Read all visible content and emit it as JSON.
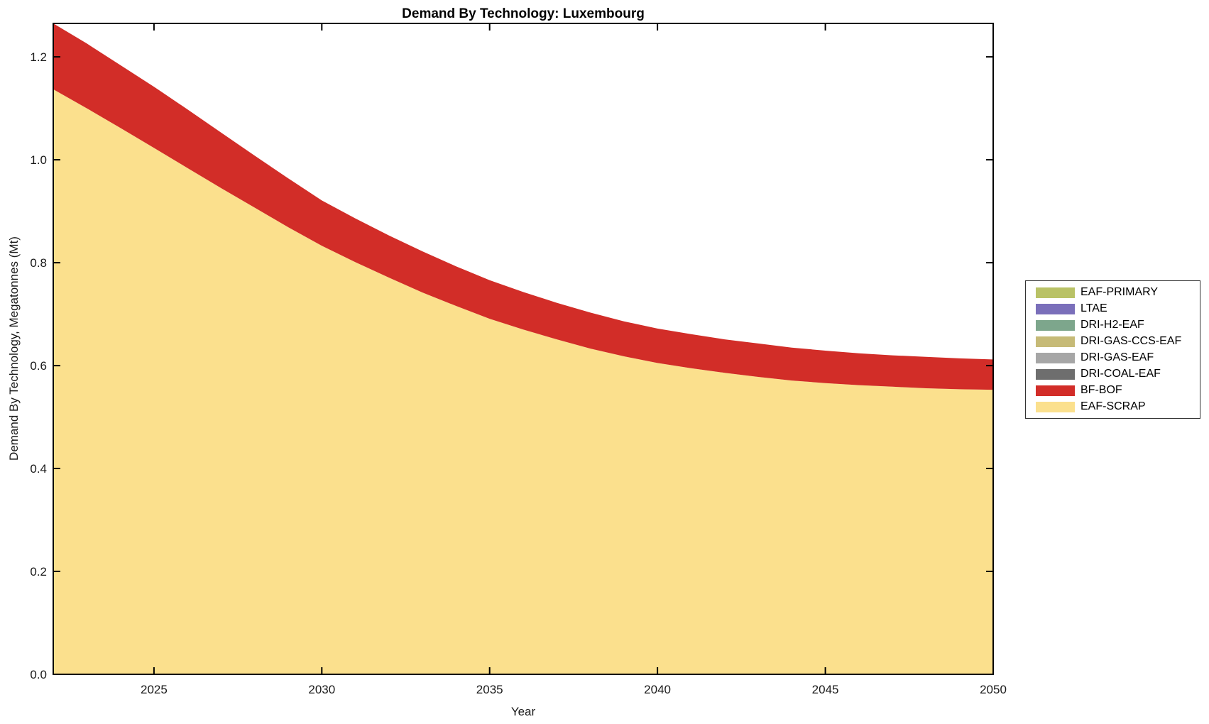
{
  "title": "Demand By Technology: Luxembourg",
  "axes": {
    "x": {
      "label": "Year",
      "tick_labels": [
        "2025",
        "2030",
        "2035",
        "2040",
        "2045",
        "2050"
      ]
    },
    "y": {
      "label": "Demand By Technology, Megatonnes (Mt)",
      "tick_labels": [
        "0.0",
        "0.2",
        "0.4",
        "0.6",
        "0.8",
        "1.0",
        "1.2"
      ]
    }
  },
  "legend": {
    "items": [
      {
        "label": "EAF-PRIMARY",
        "color": "#b9c266"
      },
      {
        "label": "LTAE",
        "color": "#7a6fba"
      },
      {
        "label": "DRI-H2-EAF",
        "color": "#7da68c"
      },
      {
        "label": "DRI-GAS-CCS-EAF",
        "color": "#c6ba77"
      },
      {
        "label": "DRI-GAS-EAF",
        "color": "#a6a6a6"
      },
      {
        "label": "DRI-COAL-EAF",
        "color": "#6e6e6e"
      },
      {
        "label": "BF-BOF",
        "color": "#d22d28"
      },
      {
        "label": "EAF-SCRAP",
        "color": "#fbe08d"
      }
    ]
  },
  "chart_data": {
    "type": "area",
    "stacked": true,
    "title": "Demand By Technology: Luxembourg",
    "xlabel": "Year",
    "ylabel": "Demand By Technology, Megatonnes (Mt)",
    "xlim": [
      2022,
      2050
    ],
    "ylim": [
      0,
      1.265
    ],
    "xticks": [
      2025,
      2030,
      2035,
      2040,
      2045,
      2050
    ],
    "yticks": [
      0.0,
      0.2,
      0.4,
      0.6,
      0.8,
      1.0,
      1.2
    ],
    "grid": false,
    "legend_position": "right-outside",
    "legend_order_top_to_bottom": [
      "EAF-PRIMARY",
      "LTAE",
      "DRI-H2-EAF",
      "DRI-GAS-CCS-EAF",
      "DRI-GAS-EAF",
      "DRI-COAL-EAF",
      "BF-BOF",
      "EAF-SCRAP"
    ],
    "x": [
      2022,
      2023,
      2024,
      2025,
      2026,
      2027,
      2028,
      2029,
      2030,
      2031,
      2032,
      2033,
      2034,
      2035,
      2036,
      2037,
      2038,
      2039,
      2040,
      2041,
      2042,
      2043,
      2044,
      2045,
      2046,
      2047,
      2048,
      2049,
      2050
    ],
    "series": [
      {
        "name": "EAF-SCRAP",
        "color": "#fbe08d",
        "values": [
          1.137,
          1.1,
          1.062,
          1.023,
          0.984,
          0.945,
          0.907,
          0.869,
          0.833,
          0.801,
          0.771,
          0.742,
          0.716,
          0.691,
          0.67,
          0.651,
          0.633,
          0.618,
          0.605,
          0.595,
          0.586,
          0.578,
          0.571,
          0.566,
          0.562,
          0.559,
          0.556,
          0.554,
          0.553
        ]
      },
      {
        "name": "BF-BOF",
        "color": "#d22d28",
        "values": [
          0.128,
          0.126,
          0.122,
          0.119,
          0.114,
          0.108,
          0.101,
          0.095,
          0.088,
          0.085,
          0.082,
          0.08,
          0.077,
          0.075,
          0.073,
          0.071,
          0.07,
          0.068,
          0.067,
          0.066,
          0.065,
          0.065,
          0.064,
          0.063,
          0.062,
          0.061,
          0.061,
          0.06,
          0.059
        ]
      }
    ]
  }
}
